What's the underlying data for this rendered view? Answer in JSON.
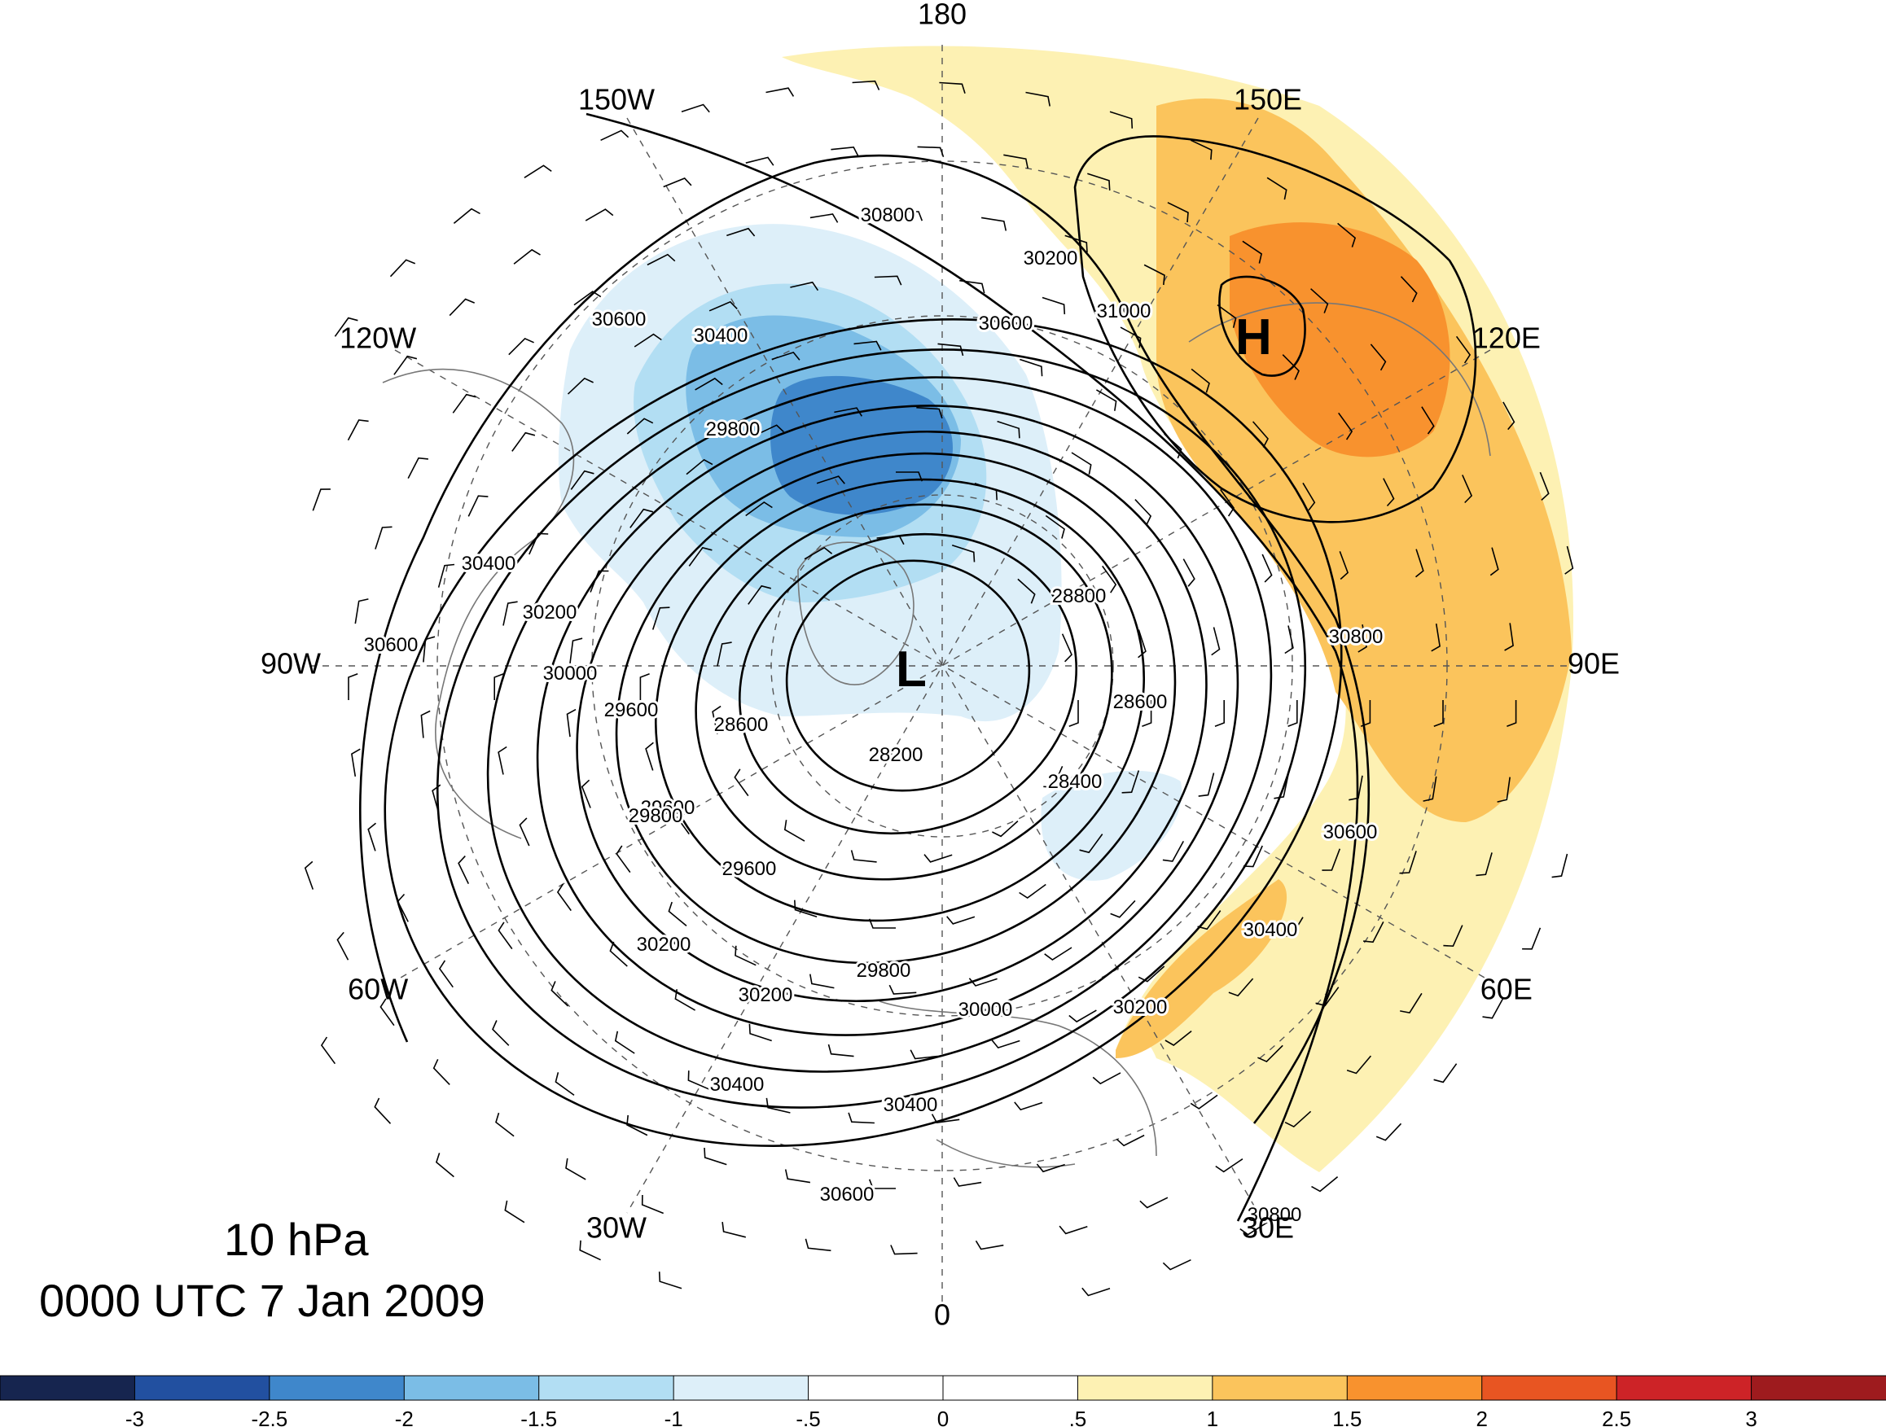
{
  "map": {
    "level_label": "10 hPa",
    "time_label": "0000 UTC 7 Jan 2009",
    "longitude_labels": [
      {
        "text": "180",
        "lon": 180
      },
      {
        "text": "150E",
        "lon": 150
      },
      {
        "text": "120E",
        "lon": 120
      },
      {
        "text": "90E",
        "lon": 90
      },
      {
        "text": "60E",
        "lon": 60
      },
      {
        "text": "30E",
        "lon": 30
      },
      {
        "text": "0",
        "lon": 0
      },
      {
        "text": "30W",
        "lon": -30
      },
      {
        "text": "60W",
        "lon": -60
      },
      {
        "text": "90W",
        "lon": -90
      },
      {
        "text": "120W",
        "lon": -120
      },
      {
        "text": "150W",
        "lon": -150
      }
    ],
    "centers": [
      {
        "text": "L",
        "kind": "low"
      },
      {
        "text": "H",
        "kind": "high"
      }
    ],
    "contour_labels": [
      "28200",
      "28400",
      "28600",
      "28600",
      "28800",
      "29600",
      "29600",
      "29600",
      "29800",
      "29800",
      "29800",
      "30000",
      "30000",
      "30200",
      "30200",
      "30200",
      "30200",
      "30200",
      "30400",
      "30400",
      "30400",
      "30400",
      "30400",
      "30600",
      "30600",
      "30600",
      "30600",
      "30600",
      "30800",
      "30800",
      "30800",
      "31000"
    ]
  },
  "colorbar": {
    "colors": [
      "#16254f",
      "#2250a0",
      "#3f87cb",
      "#7bbde6",
      "#b2def3",
      "#ddeff9",
      "#ffffff",
      "#ffffff",
      "#fdf1b3",
      "#fbc45c",
      "#f8922e",
      "#e85522",
      "#cd2327",
      "#9e1b1e"
    ],
    "tick_labels": [
      "-3",
      "-2.5",
      "-2",
      "-1.5",
      "-1",
      "-.5",
      "0",
      ".5",
      "1",
      "1.5",
      "2",
      "2.5",
      "3"
    ]
  }
}
